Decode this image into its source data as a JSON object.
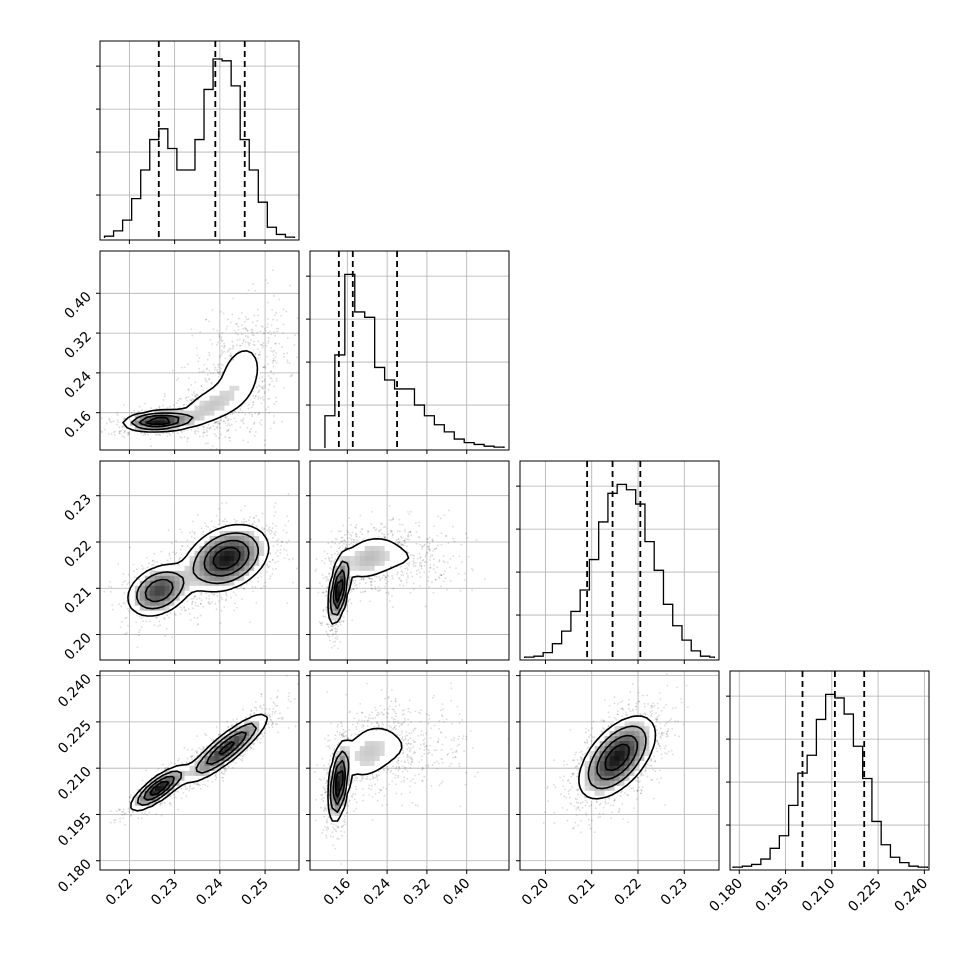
{
  "chart_data": {
    "type": "corner",
    "grid": true,
    "parameters": [
      {
        "ticks": [
          0.22,
          0.23,
          0.24,
          0.25
        ],
        "tick_labels": [
          "0.22",
          "0.23",
          "0.24",
          "0.25"
        ],
        "range": [
          0.2135,
          0.2575
        ]
      },
      {
        "ticks": [
          0.16,
          0.24,
          0.32,
          0.4
        ],
        "tick_labels": [
          "0.16",
          "0.24",
          "0.32",
          "0.40"
        ],
        "range": [
          0.085,
          0.485
        ]
      },
      {
        "ticks": [
          0.2,
          0.21,
          0.22,
          0.23
        ],
        "tick_labels": [
          "0.20",
          "0.21",
          "0.22",
          "0.23"
        ],
        "range": [
          0.1945,
          0.2375
        ]
      },
      {
        "ticks": [
          0.18,
          0.195,
          0.21,
          0.225,
          0.24
        ],
        "tick_labels": [
          "0.180",
          "0.195",
          "0.210",
          "0.225",
          "0.240"
        ],
        "range": [
          0.177,
          0.2415
        ]
      }
    ],
    "histograms": [
      {
        "edges": [
          0.2145,
          0.2165,
          0.2185,
          0.2205,
          0.2225,
          0.2245,
          0.2265,
          0.2285,
          0.2305,
          0.2325,
          0.2345,
          0.2365,
          0.2385,
          0.2405,
          0.2425,
          0.2445,
          0.2465,
          0.2485,
          0.2505,
          0.2525,
          0.2545,
          0.2565
        ],
        "counts": [
          0.01,
          0.04,
          0.1,
          0.22,
          0.38,
          0.55,
          0.61,
          0.5,
          0.38,
          0.38,
          0.55,
          0.83,
          1.0,
          0.99,
          0.85,
          0.55,
          0.38,
          0.2,
          0.06,
          0.02,
          0.005
        ],
        "quantiles": [
          0.2265,
          0.239,
          0.2455
        ]
      },
      {
        "edges": [
          0.115,
          0.135,
          0.155,
          0.175,
          0.195,
          0.215,
          0.235,
          0.255,
          0.275,
          0.295,
          0.315,
          0.335,
          0.355,
          0.375,
          0.395,
          0.415,
          0.435,
          0.455,
          0.475
        ],
        "counts": [
          0.18,
          0.52,
          0.97,
          0.76,
          0.73,
          0.45,
          0.38,
          0.33,
          0.33,
          0.24,
          0.18,
          0.13,
          0.09,
          0.05,
          0.03,
          0.02,
          0.01,
          0.005
        ],
        "quantiles": [
          0.143,
          0.171,
          0.26
        ]
      },
      {
        "edges": [
          0.1955,
          0.1975,
          0.1995,
          0.2015,
          0.2035,
          0.2055,
          0.2075,
          0.2095,
          0.2115,
          0.2135,
          0.2155,
          0.2175,
          0.2195,
          0.2215,
          0.2235,
          0.2255,
          0.2275,
          0.2295,
          0.2315,
          0.2335,
          0.2355,
          0.2365
        ],
        "counts": [
          0.005,
          0.01,
          0.03,
          0.08,
          0.15,
          0.26,
          0.38,
          0.55,
          0.76,
          0.92,
          0.97,
          0.94,
          0.86,
          0.65,
          0.49,
          0.3,
          0.18,
          0.1,
          0.04,
          0.01,
          0.005
        ],
        "quantiles": [
          0.209,
          0.2145,
          0.2205
        ]
      },
      {
        "edges": [
          0.178,
          0.181,
          0.184,
          0.187,
          0.19,
          0.193,
          0.196,
          0.199,
          0.202,
          0.205,
          0.208,
          0.211,
          0.214,
          0.217,
          0.22,
          0.223,
          0.226,
          0.229,
          0.232,
          0.235,
          0.238,
          0.241
        ],
        "counts": [
          0.005,
          0.01,
          0.02,
          0.05,
          0.11,
          0.18,
          0.35,
          0.53,
          0.63,
          0.83,
          0.97,
          0.95,
          0.86,
          0.68,
          0.5,
          0.26,
          0.13,
          0.06,
          0.03,
          0.01,
          0.005
        ],
        "quantiles": [
          0.2005,
          0.211,
          0.2205
        ]
      }
    ],
    "pairs": [
      {
        "x_param": 0,
        "y_param": 1,
        "blobs": [
          {
            "mx": 0.2265,
            "my": 0.143,
            "sx": 0.0038,
            "sy": 0.01,
            "rho": 0.2,
            "w": 0.38
          },
          {
            "mx": 0.237,
            "my": 0.17,
            "sx": 0.004,
            "sy": 0.025,
            "rho": 0.5,
            "w": 0.22
          },
          {
            "mx": 0.2445,
            "my": 0.235,
            "sx": 0.0042,
            "sy": 0.055,
            "rho": 0.3,
            "w": 0.4
          }
        ]
      },
      {
        "x_param": 0,
        "y_param": 2,
        "blobs": [
          {
            "mx": 0.2265,
            "my": 0.2095,
            "sx": 0.0035,
            "sy": 0.0028,
            "rho": 0.3,
            "w": 0.33
          },
          {
            "mx": 0.2415,
            "my": 0.2165,
            "sx": 0.0045,
            "sy": 0.0035,
            "rho": 0.3,
            "w": 0.67
          }
        ]
      },
      {
        "x_param": 0,
        "y_param": 3,
        "blobs": [
          {
            "mx": 0.2265,
            "my": 0.2035,
            "sx": 0.003,
            "sy": 0.0035,
            "rho": 0.8,
            "w": 0.33
          },
          {
            "mx": 0.2415,
            "my": 0.2165,
            "sx": 0.0045,
            "sy": 0.0055,
            "rho": 0.88,
            "w": 0.67
          }
        ]
      },
      {
        "x_param": 1,
        "y_param": 2,
        "blobs": [
          {
            "mx": 0.143,
            "my": 0.2095,
            "sx": 0.01,
            "sy": 0.0035,
            "rho": 0.5,
            "w": 0.45
          },
          {
            "mx": 0.2,
            "my": 0.2165,
            "sx": 0.035,
            "sy": 0.003,
            "rho": 0.3,
            "w": 0.35
          },
          {
            "mx": 0.28,
            "my": 0.2165,
            "sx": 0.05,
            "sy": 0.003,
            "rho": 0.0,
            "w": 0.2
          }
        ]
      },
      {
        "x_param": 1,
        "y_param": 3,
        "blobs": [
          {
            "mx": 0.143,
            "my": 0.205,
            "sx": 0.01,
            "sy": 0.006,
            "rho": 0.4,
            "w": 0.45
          },
          {
            "mx": 0.2,
            "my": 0.215,
            "sx": 0.035,
            "sy": 0.006,
            "rho": 0.3,
            "w": 0.35
          },
          {
            "mx": 0.28,
            "my": 0.2165,
            "sx": 0.05,
            "sy": 0.006,
            "rho": 0.0,
            "w": 0.2
          }
        ]
      },
      {
        "x_param": 2,
        "y_param": 3,
        "blobs": [
          {
            "mx": 0.2155,
            "my": 0.2135,
            "sx": 0.004,
            "sy": 0.0065,
            "rho": 0.55,
            "w": 1.0
          }
        ]
      }
    ]
  }
}
